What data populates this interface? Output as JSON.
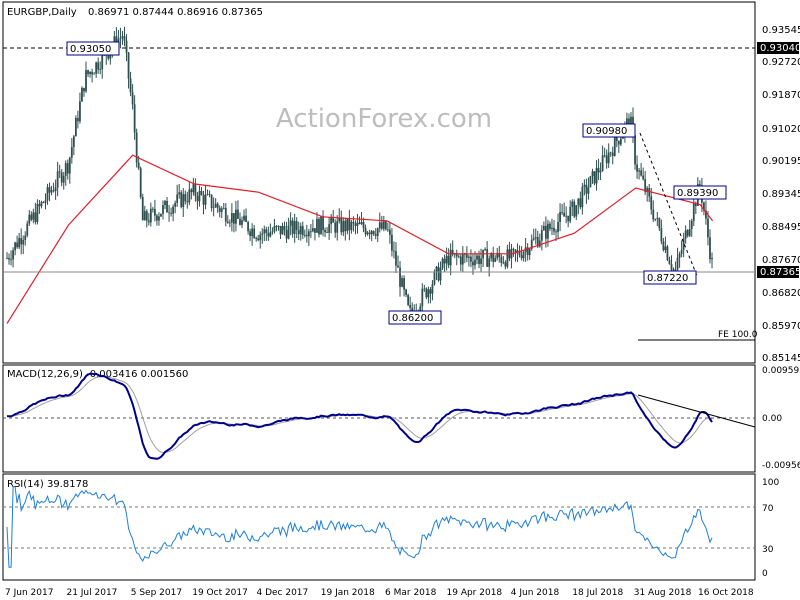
{
  "header": {
    "title": "EURGBP,Daily",
    "ohlc": "0.86971 0.87444 0.86916 0.87365"
  },
  "watermark": "ActionForex.com",
  "colors": {
    "background": "#ffffff",
    "candles": "#2f4f4f",
    "sma": "#e0202a",
    "macd_line": "#00008b",
    "macd_signal": "#a0a0a0",
    "rsi_line": "#1e7fd8",
    "label_border": "#00008b",
    "current_price_box": "#000000"
  },
  "chart_data": [
    {
      "type": "candlestick",
      "panel": "price",
      "title": "EURGBP,Daily",
      "ylim": [
        0.8504,
        0.9383
      ],
      "y_ticks": [
        "0.93545",
        "0.92720",
        "0.91870",
        "0.91020",
        "0.90195",
        "0.89345",
        "0.88495",
        "0.87670",
        "0.86820",
        "0.85970",
        "0.85145"
      ],
      "x_ticks": [
        "7 Jun 2017",
        "21 Jul 2017",
        "5 Sep 2017",
        "19 Oct 2017",
        "4 Dec 2017",
        "19 Jan 2018",
        "6 Mar 2018",
        "19 Apr 2018",
        "4 Jun 2018",
        "18 Jul 2018",
        "31 Aug 2018",
        "16 Oct 2018"
      ],
      "close_path": [
        [
          "7 Jun 2017",
          0.876
        ],
        [
          "21 Jul 2017",
          0.899
        ],
        [
          "2 Aug 2017",
          0.92
        ],
        [
          "29 Aug 2017",
          0.9305
        ],
        [
          "5 Sep 2017",
          0.912
        ],
        [
          "12 Sep 2017",
          0.885
        ],
        [
          "19 Oct 2017",
          0.892
        ],
        [
          "4 Dec 2017",
          0.882
        ],
        [
          "19 Jan 2018",
          0.884
        ],
        [
          "6 Mar 2018",
          0.883
        ],
        [
          "22 Mar 2018",
          0.862
        ],
        [
          "19 Apr 2018",
          0.876
        ],
        [
          "4 Jun 2018",
          0.876
        ],
        [
          "18 Jul 2018",
          0.888
        ],
        [
          "27 Aug 2018",
          0.9098
        ],
        [
          "31 Aug 2018",
          0.899
        ],
        [
          "28 Sep 2018",
          0.8722
        ],
        [
          "16 Oct 2018",
          0.8939
        ],
        [
          "25 Oct 2018",
          0.8737
        ]
      ],
      "moving_average": [
        [
          "7 Jun 2017",
          0.86
        ],
        [
          "21 Jul 2017",
          0.884
        ],
        [
          "5 Sep 2017",
          0.901
        ],
        [
          "19 Oct 2017",
          0.894
        ],
        [
          "4 Dec 2017",
          0.892
        ],
        [
          "19 Jan 2018",
          0.886
        ],
        [
          "6 Mar 2018",
          0.885
        ],
        [
          "19 Apr 2018",
          0.877
        ],
        [
          "4 Jun 2018",
          0.877
        ],
        [
          "18 Jul 2018",
          0.882
        ],
        [
          "31 Aug 2018",
          0.893
        ],
        [
          "16 Oct 2018",
          0.889
        ],
        [
          "25 Oct 2018",
          0.885
        ]
      ],
      "annotations": [
        {
          "text": "0.93050",
          "value": 0.9305,
          "date": "29 Aug 2017"
        },
        {
          "text": "0.86200",
          "value": 0.862,
          "date": "22 Mar 2018"
        },
        {
          "text": "0.90980",
          "value": 0.9098,
          "date": "27 Aug 2018"
        },
        {
          "text": "0.87220",
          "value": 0.8722,
          "date": "28 Sep 2018"
        },
        {
          "text": "0.89390",
          "value": 0.8939,
          "date": "16 Oct 2018"
        },
        {
          "text": "FE 100.0",
          "value": 0.8571,
          "date": "16 Oct 2018"
        }
      ],
      "horizontal_lines": [
        {
          "value": 0.9304,
          "label": "0.93040",
          "style": "dashed"
        },
        {
          "value": 0.87365,
          "label": "0.87365",
          "style": "solid"
        }
      ]
    },
    {
      "type": "line",
      "panel": "macd",
      "label": "MACD(12,26,9) -0.003416 0.001560",
      "y_ticks": [
        "0.009593",
        "0.00",
        "-0.009562"
      ],
      "ylim": [
        -0.0115,
        0.0105
      ],
      "zero_line": 0.0
    },
    {
      "type": "line",
      "panel": "rsi",
      "label": "RSI(14) 39.8178",
      "y_ticks": [
        "100",
        "70",
        "30",
        "0"
      ],
      "ylim": [
        0,
        100
      ],
      "levels": [
        70,
        30
      ],
      "last_value": 39.8178
    }
  ]
}
